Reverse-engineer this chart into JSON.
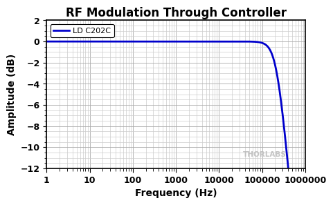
{
  "title": "RF Modulation Through Controller",
  "xlabel": "Frequency (Hz)",
  "ylabel": "Amplitude (dB)",
  "legend_label": "LD C202C",
  "xmin": 1,
  "xmax": 1000000,
  "ymin": -12,
  "ymax": 2,
  "yticks": [
    2,
    0,
    -2,
    -4,
    -6,
    -8,
    -10,
    -12
  ],
  "line_color": "#0000CC",
  "line_width": 2.0,
  "background_color": "#ffffff",
  "plot_bg_color": "#ffffff",
  "grid_major_color": "#aaaaaa",
  "grid_minor_color": "#cccccc",
  "title_fontsize": 12,
  "label_fontsize": 10,
  "tick_fontsize": 9,
  "legend_fontsize": 8,
  "watermark_text": "THORLABS",
  "watermark_color": "#bbbbbb",
  "fc_hz": 220000,
  "filter_order": 2.2
}
